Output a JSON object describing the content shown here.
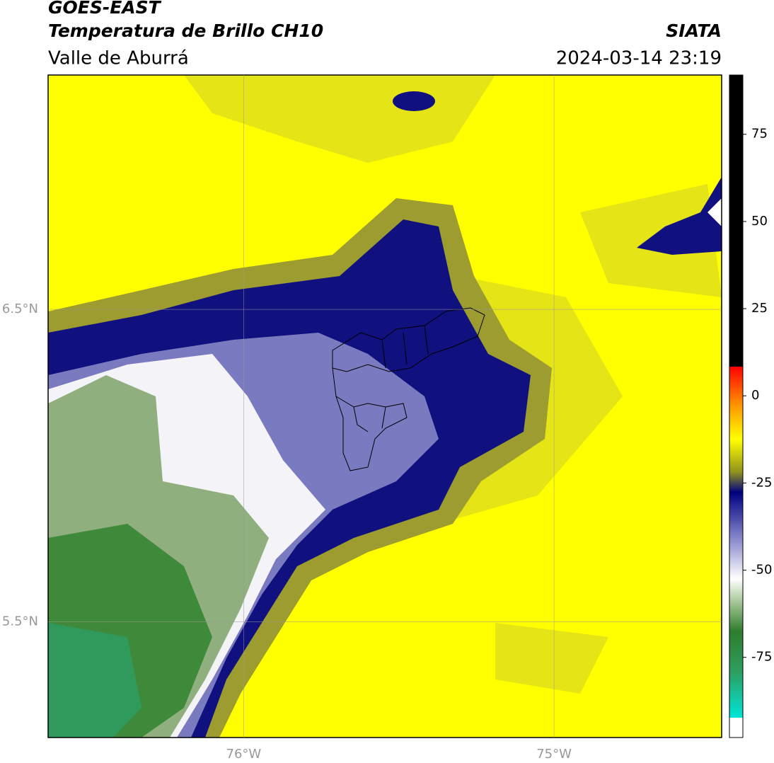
{
  "header": {
    "title": "GOES-EAST",
    "subtitle": "Temperatura de Brillo CH10",
    "region": "Valle de Aburrá",
    "source": "SIATA",
    "datetime": "2024-03-14 23:19"
  },
  "map": {
    "latlim": [
      5.13,
      7.25
    ],
    "lonlim": [
      -76.63,
      -74.46
    ],
    "latticks": [
      {
        "value": 6.5,
        "label": "6.5°N"
      },
      {
        "value": 5.5,
        "label": "5.5°N"
      }
    ],
    "lonticks": [
      {
        "value": -76,
        "label": "76°W"
      },
      {
        "value": -75,
        "label": "75°W"
      }
    ]
  },
  "colorbar": {
    "lim": [
      -98,
      92
    ],
    "ticks": [
      75,
      50,
      25,
      0,
      -25,
      -50,
      -75
    ]
  }
}
